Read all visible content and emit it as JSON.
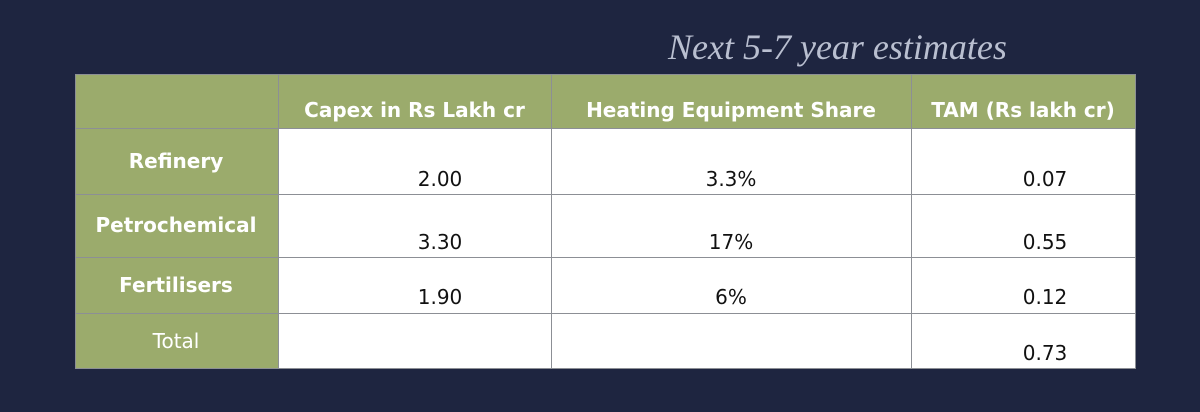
{
  "title": "Next 5-7 year estimates",
  "table": {
    "columns": [
      "Capex in Rs Lakh cr",
      "Heating Equipment Share",
      "TAM (Rs lakh cr)"
    ],
    "rows": [
      {
        "label": "Refinery",
        "capex": "2.00",
        "share": "3.3%",
        "tam": "0.07"
      },
      {
        "label": "Petrochemical",
        "capex": "3.30",
        "share": "17%",
        "tam": "0.55"
      },
      {
        "label": "Fertilisers",
        "capex": "1.90",
        "share": "6%",
        "tam": "0.12"
      },
      {
        "label": "Total",
        "tam": "0.73"
      }
    ]
  }
}
